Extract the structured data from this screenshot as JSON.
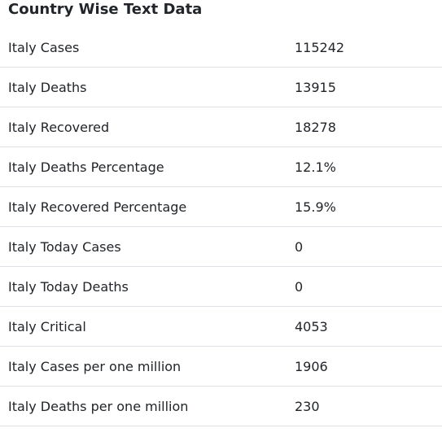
{
  "title": "Country Wise Text Data",
  "rows": [
    {
      "label": "Italy Cases",
      "value": "115242"
    },
    {
      "label": "Italy Deaths",
      "value": "13915"
    },
    {
      "label": "Italy Recovered",
      "value": "18278"
    },
    {
      "label": "Italy Deaths Percentage",
      "value": "12.1%"
    },
    {
      "label": "Italy Recovered Percentage",
      "value": "15.9%"
    },
    {
      "label": "Italy Today Cases",
      "value": "0"
    },
    {
      "label": "Italy Today Deaths",
      "value": "0"
    },
    {
      "label": "Italy Critical",
      "value": "4053"
    },
    {
      "label": "Italy Cases per one million",
      "value": "1906"
    },
    {
      "label": "Italy Deaths per one million",
      "value": "230"
    }
  ]
}
